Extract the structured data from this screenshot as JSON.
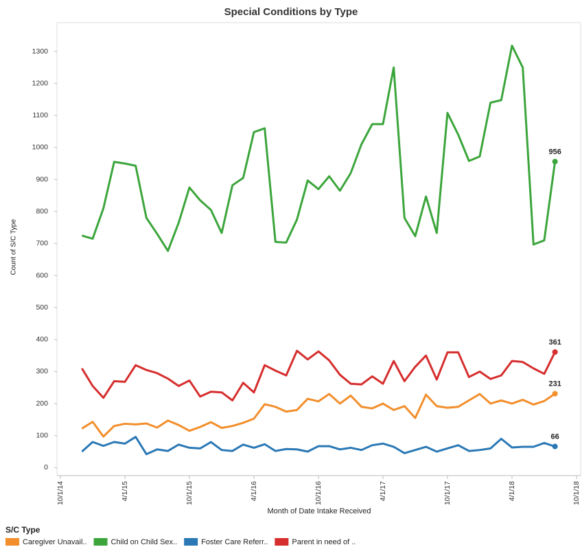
{
  "chart_data": {
    "type": "line",
    "title": "Special Conditions by Type",
    "x_label": "Month of Date Intake Received",
    "y_label": "Count of S/C Type",
    "legend_title": "S/C Type",
    "legend_position": "bottom-left",
    "grid": false,
    "label_last": true,
    "x": [
      "12/1/14",
      "1/1/15",
      "2/1/15",
      "3/1/15",
      "4/1/15",
      "5/1/15",
      "6/1/15",
      "7/1/15",
      "8/1/15",
      "9/1/15",
      "10/1/15",
      "11/1/15",
      "12/1/15",
      "1/1/16",
      "2/1/16",
      "3/1/16",
      "4/1/16",
      "5/1/16",
      "6/1/16",
      "7/1/16",
      "8/1/16",
      "9/1/16",
      "10/1/16",
      "11/1/16",
      "12/1/16",
      "1/1/17",
      "2/1/17",
      "3/1/17",
      "4/1/17",
      "5/1/17",
      "6/1/17",
      "7/1/17",
      "8/1/17",
      "9/1/17",
      "10/1/17",
      "11/1/17",
      "12/1/17",
      "1/1/18",
      "2/1/18",
      "3/1/18",
      "4/1/18",
      "5/1/18",
      "6/1/18",
      "7/1/18",
      "8/1/18"
    ],
    "xlim": [
      "10/1/14",
      "10/1/18"
    ],
    "xticks": [
      "10/1/14",
      "4/1/15",
      "10/1/15",
      "4/1/16",
      "10/1/16",
      "4/1/17",
      "10/1/17",
      "4/1/18",
      "10/1/18"
    ],
    "ylim": [
      -25,
      1390
    ],
    "yticks": [
      0,
      100,
      200,
      300,
      400,
      500,
      600,
      700,
      800,
      900,
      1000,
      1100,
      1200,
      1300
    ],
    "series": [
      {
        "name": "Caregiver Unavail..",
        "color": "#f28e2b",
        "values": [
          122,
          143,
          97,
          130,
          137,
          135,
          138,
          125,
          147,
          133,
          115,
          127,
          142,
          124,
          130,
          140,
          153,
          198,
          190,
          175,
          180,
          215,
          207,
          230,
          200,
          225,
          190,
          185,
          200,
          180,
          192,
          155,
          228,
          192,
          187,
          190,
          210,
          230,
          200,
          210,
          200,
          212,
          197,
          208,
          231
        ]
      },
      {
        "name": "Child on Child Sex..",
        "color": "#3ba53b",
        "values": [
          725,
          715,
          810,
          955,
          950,
          943,
          780,
          730,
          677,
          765,
          875,
          835,
          805,
          733,
          882,
          905,
          1048,
          1060,
          705,
          703,
          775,
          897,
          870,
          910,
          865,
          920,
          1010,
          1073,
          1073,
          1250,
          780,
          723,
          847,
          733,
          1108,
          1040,
          958,
          972,
          1140,
          1148,
          1318,
          1250,
          697,
          710,
          956
        ]
      },
      {
        "name": "Foster Care Referr..",
        "color": "#2a78b5",
        "values": [
          50,
          80,
          68,
          80,
          75,
          96,
          42,
          57,
          52,
          72,
          62,
          60,
          80,
          55,
          52,
          72,
          62,
          73,
          52,
          58,
          57,
          50,
          67,
          67,
          57,
          62,
          55,
          70,
          75,
          65,
          45,
          55,
          65,
          50,
          60,
          70,
          52,
          55,
          60,
          90,
          63,
          65,
          65,
          77,
          66
        ]
      },
      {
        "name": "Parent in need of ..",
        "color": "#d62d2d",
        "values": [
          310,
          255,
          218,
          270,
          268,
          320,
          305,
          295,
          278,
          255,
          272,
          222,
          237,
          235,
          210,
          265,
          235,
          320,
          303,
          288,
          365,
          338,
          363,
          335,
          290,
          262,
          260,
          285,
          262,
          333,
          270,
          315,
          350,
          275,
          360,
          360,
          283,
          300,
          277,
          288,
          333,
          330,
          310,
          293,
          361
        ]
      }
    ]
  }
}
